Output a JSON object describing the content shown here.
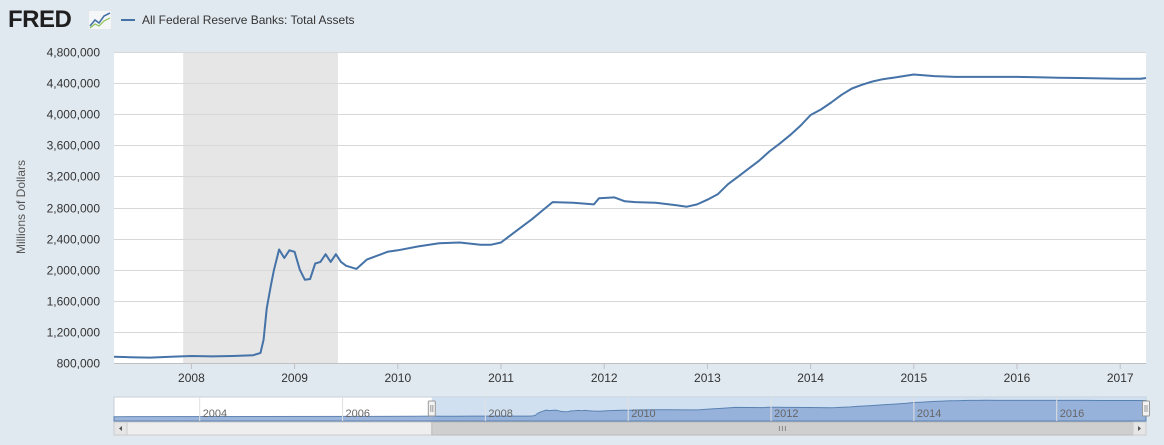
{
  "header": {
    "logo_text": "FRED",
    "legend_label": "All Federal Reserve Banks: Total Assets"
  },
  "colors": {
    "series": "#4572a7",
    "recession": "#e6e6e6",
    "navigator_fill": "#8eaad6",
    "plot_background": "#ffffff",
    "page_background": "#e1e9f0"
  },
  "chart_data": {
    "type": "line",
    "title": "",
    "xlabel": "",
    "ylabel": "Millions of Dollars",
    "xlim": [
      2007.25,
      2017.25
    ],
    "ylim": [
      800000,
      4800000
    ],
    "grid": true,
    "legend_position": "top-left",
    "y_ticks": [
      800000,
      1200000,
      1600000,
      2000000,
      2400000,
      2800000,
      3200000,
      3600000,
      4000000,
      4400000,
      4800000
    ],
    "y_tick_labels": [
      "800,000",
      "1,200,000",
      "1,600,000",
      "2,000,000",
      "2,400,000",
      "2,800,000",
      "3,200,000",
      "3,600,000",
      "4,000,000",
      "4,400,000",
      "4,800,000"
    ],
    "x_ticks": [
      2008,
      2009,
      2010,
      2011,
      2012,
      2013,
      2014,
      2015,
      2016,
      2017
    ],
    "x_tick_labels": [
      "2008",
      "2009",
      "2010",
      "2011",
      "2012",
      "2013",
      "2014",
      "2015",
      "2016",
      "2017"
    ],
    "recession": {
      "start": 2007.92,
      "end": 2009.42
    },
    "series": [
      {
        "name": "All Federal Reserve Banks: Total Assets",
        "x": [
          2007.25,
          2007.4,
          2007.6,
          2007.8,
          2008.0,
          2008.2,
          2008.4,
          2008.6,
          2008.67,
          2008.7,
          2008.73,
          2008.77,
          2008.8,
          2008.85,
          2008.9,
          2008.95,
          2009.0,
          2009.05,
          2009.1,
          2009.15,
          2009.2,
          2009.25,
          2009.3,
          2009.35,
          2009.4,
          2009.45,
          2009.5,
          2009.6,
          2009.7,
          2009.8,
          2009.9,
          2010.0,
          2010.2,
          2010.4,
          2010.6,
          2010.8,
          2010.9,
          2011.0,
          2011.1,
          2011.2,
          2011.3,
          2011.4,
          2011.5,
          2011.7,
          2011.9,
          2011.95,
          2012.1,
          2012.2,
          2012.3,
          2012.5,
          2012.7,
          2012.8,
          2012.9,
          2013.0,
          2013.1,
          2013.2,
          2013.3,
          2013.4,
          2013.5,
          2013.6,
          2013.7,
          2013.8,
          2013.9,
          2014.0,
          2014.1,
          2014.2,
          2014.3,
          2014.4,
          2014.5,
          2014.6,
          2014.7,
          2014.8,
          2014.9,
          2015.0,
          2015.2,
          2015.4,
          2015.6,
          2015.8,
          2016.0,
          2016.2,
          2016.4,
          2016.6,
          2016.8,
          2017.0,
          2017.2,
          2017.25
        ],
        "values": [
          880000,
          875000,
          870000,
          880000,
          890000,
          885000,
          890000,
          900000,
          930000,
          1100000,
          1500000,
          1800000,
          2000000,
          2260000,
          2150000,
          2250000,
          2230000,
          2000000,
          1870000,
          1880000,
          2080000,
          2100000,
          2200000,
          2100000,
          2200000,
          2100000,
          2050000,
          2010000,
          2130000,
          2180000,
          2230000,
          2250000,
          2300000,
          2340000,
          2350000,
          2320000,
          2320000,
          2350000,
          2450000,
          2550000,
          2650000,
          2760000,
          2870000,
          2860000,
          2840000,
          2920000,
          2930000,
          2880000,
          2870000,
          2860000,
          2830000,
          2810000,
          2840000,
          2900000,
          2970000,
          3100000,
          3200000,
          3300000,
          3400000,
          3520000,
          3620000,
          3730000,
          3850000,
          3990000,
          4060000,
          4150000,
          4250000,
          4330000,
          4380000,
          4420000,
          4450000,
          4470000,
          4490000,
          4510000,
          4490000,
          4480000,
          4480000,
          4480000,
          4480000,
          4475000,
          4470000,
          4465000,
          4460000,
          4455000,
          4455000,
          4465000
        ]
      }
    ]
  },
  "navigator": {
    "tick_labels": [
      "2004",
      "2006",
      "2008",
      "2010",
      "2012",
      "2014",
      "2016"
    ],
    "tick_years": [
      2004,
      2006,
      2008,
      2010,
      2012,
      2014,
      2016
    ],
    "range": [
      2002.8,
      2017.25
    ],
    "selected": [
      2007.25,
      2017.25
    ]
  }
}
